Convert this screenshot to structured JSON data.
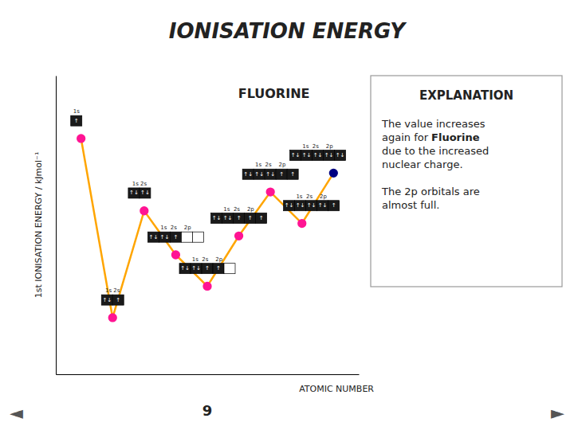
{
  "chart_data": {
    "type": "line",
    "title": "IONISATION ENERGY",
    "xlabel": "ATOMIC NUMBER",
    "ylabel": "1st IONISATION ENERGY / kJmol⁻¹",
    "x": [
      1,
      2,
      3,
      4,
      5,
      6,
      7,
      8,
      9
    ],
    "values": [
      0.75,
      0.18,
      0.52,
      0.38,
      0.28,
      0.44,
      0.58,
      0.48,
      0.64
    ],
    "color": "#ffa500",
    "colors": [
      "#ff1493",
      "#ff1493",
      "#ff1493",
      "#ff1493",
      "#ff1493",
      "#ff1493",
      "#ff1493",
      "#ff1493",
      "#000080"
    ],
    "marker": "circle",
    "xlim": [
      0.2,
      9.8
    ],
    "ylim": [
      0.0,
      0.95
    ],
    "tick_labels": false,
    "highlight_label": "FLUORINE",
    "atomic_number_label": "9",
    "orbitals": [
      {
        "header": "1s",
        "cells": [
          "↑"
        ]
      },
      {
        "header": "1s 2s",
        "cells": [
          "↑↓",
          "↑"
        ]
      },
      {
        "header": "1s 2s",
        "cells": [
          "↑↓",
          "↑↓"
        ]
      },
      {
        "header": "1s  2s    2p",
        "cells": [
          "↑↓",
          "↑↓",
          "↑",
          null,
          null
        ]
      },
      {
        "header": "1s  2s    2p",
        "cells": [
          "↑↓",
          "↑↓",
          "↑",
          "↑",
          null
        ]
      },
      {
        "header": "1s  2s    2p",
        "cells": [
          "↑↓",
          "↑↓",
          "↑",
          "↑",
          "↑"
        ]
      },
      {
        "header": "1s  2s    2p",
        "cells": [
          "↑↓",
          "↑↓",
          "↑↓",
          "↑",
          "↑"
        ]
      },
      {
        "header": "1s  2s    2p",
        "cells": [
          "↑↓",
          "↑↓",
          "↑↓",
          "↑↓",
          "↑"
        ]
      },
      {
        "header": "1s  2s    2p",
        "cells": [
          "↑↓",
          "↑↓",
          "↑↓",
          "↑↓",
          "↑↓"
        ]
      }
    ],
    "explanation_title": "EXPLANATION",
    "explanation": [
      [
        [
          {
            "text": "The value increases"
          }
        ],
        [
          {
            "text": "again for"
          },
          {
            "text": "Fluorine",
            "bold": true
          }
        ],
        [
          {
            "text": "due to the increased"
          }
        ],
        [
          {
            "text": "nuclear charge."
          }
        ]
      ],
      [
        [
          {
            "text": "The 2p orbitals are"
          }
        ],
        [
          {
            "text": "almost full."
          }
        ]
      ]
    ],
    "navigation": [
      "◄",
      "►"
    ]
  }
}
